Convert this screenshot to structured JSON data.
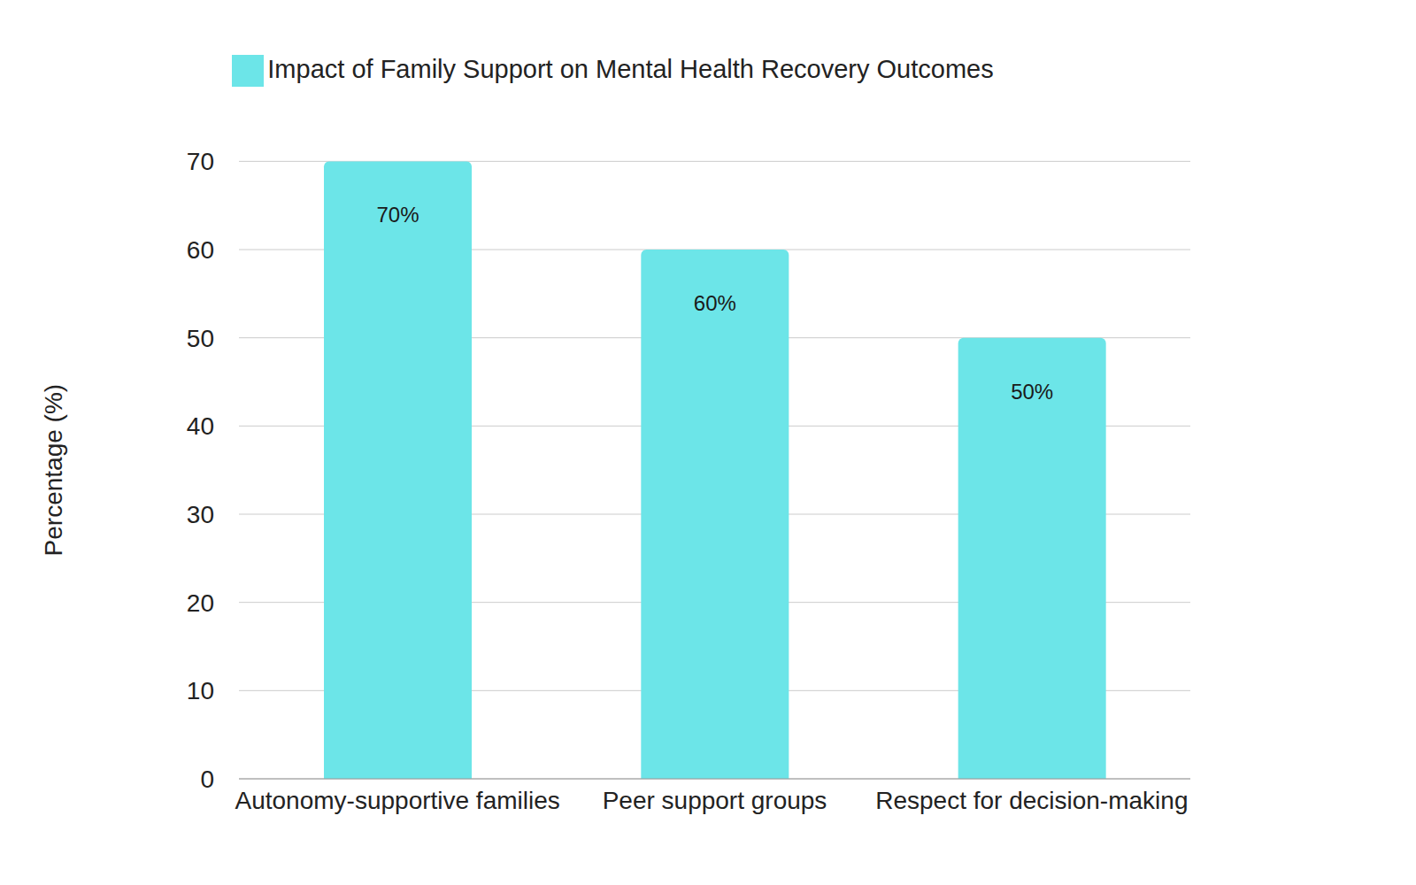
{
  "chart_data": {
    "type": "bar",
    "categories": [
      "Autonomy-supportive families",
      "Peer support groups",
      "Respect for decision-making"
    ],
    "series": [
      {
        "name": "Impact of Family Support on Mental Health Recovery Outcomes",
        "color": "#6ce5e8",
        "values": [
          70,
          60,
          50
        ],
        "value_labels": [
          "70%",
          "60%",
          "50%"
        ]
      }
    ],
    "y_label": "Percentage (%)",
    "ylim": [
      0,
      70
    ],
    "yticks": [
      0,
      10,
      20,
      30,
      40,
      50,
      60,
      70
    ],
    "grid": true,
    "legend": "top",
    "data_labels": true
  }
}
